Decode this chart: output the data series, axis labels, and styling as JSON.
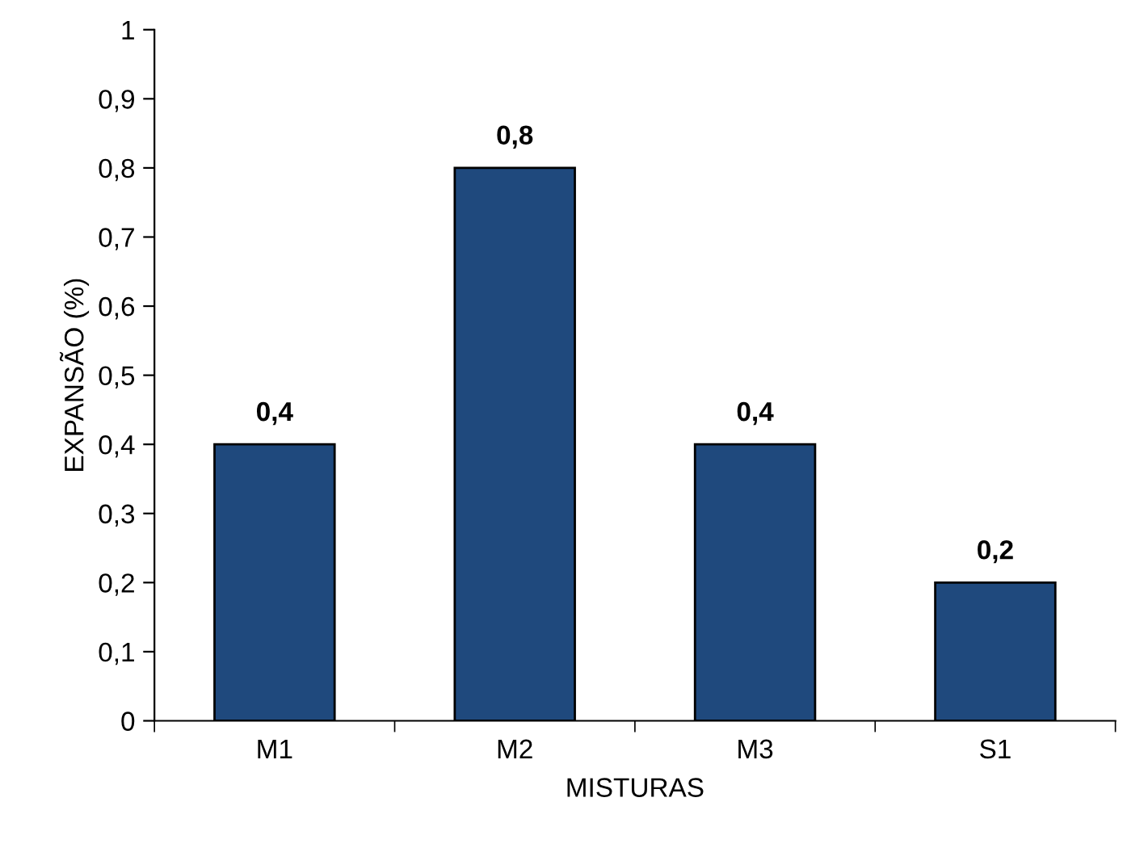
{
  "chart_data": {
    "type": "bar",
    "xlabel": "MISTURAS",
    "ylabel": "EXPANSÃO (%)",
    "categories": [
      "M1",
      "M2",
      "M3",
      "S1"
    ],
    "series": [
      {
        "color": "#1f497d",
        "values": [
          0.4,
          0.8,
          0.4,
          0.2
        ],
        "value_labels": [
          "0,4",
          "0,8",
          "0,4",
          "0,2"
        ]
      }
    ],
    "ylim": [
      0,
      1
    ],
    "yticks": [
      0,
      {
        "value": 0.1,
        "label": "0,1"
      },
      {
        "value": 0.2,
        "label": "0,2"
      },
      {
        "value": 0.3,
        "label": "0,3"
      },
      {
        "value": 0.4,
        "label": "0,4"
      },
      {
        "value": 0.5,
        "label": "0,5"
      },
      {
        "value": 0.6,
        "label": "0,6"
      },
      {
        "value": 0.7,
        "label": "0,7"
      },
      {
        "value": 0.8,
        "label": "0,8"
      },
      {
        "value": 0.9,
        "label": "0,9"
      },
      1
    ],
    "grid": false
  }
}
